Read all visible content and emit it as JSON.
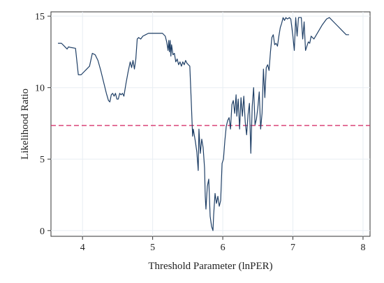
{
  "chart_data": {
    "type": "line",
    "title": "",
    "xlabel": "Threshold Parameter (lnPER)",
    "ylabel": "Likelihood Ratio",
    "xlim": [
      3.55,
      8.1
    ],
    "ylim": [
      -0.4,
      15.3
    ],
    "xticks": [
      4,
      5,
      6,
      7,
      8
    ],
    "yticks": [
      0,
      5,
      10,
      15
    ],
    "xtick_labels": [
      "4",
      "5",
      "6",
      "7",
      "8"
    ],
    "ytick_labels": [
      "0",
      "5",
      "10",
      "15"
    ],
    "grid": true,
    "legend": "none",
    "colors": {
      "line": "#1f3f66",
      "reference": "#d6336c",
      "grid": "#e8eef3"
    },
    "reference_line": {
      "y": 7.35,
      "style": "dashed"
    },
    "series": [
      {
        "points": [
          [
            3.65,
            13.1
          ],
          [
            3.7,
            13.1
          ],
          [
            3.74,
            12.9
          ],
          [
            3.78,
            12.7
          ],
          [
            3.8,
            12.85
          ],
          [
            3.84,
            12.8
          ],
          [
            3.9,
            12.75
          ],
          [
            3.94,
            10.9
          ],
          [
            3.98,
            10.9
          ],
          [
            4.02,
            11.1
          ],
          [
            4.06,
            11.3
          ],
          [
            4.1,
            11.5
          ],
          [
            4.14,
            12.4
          ],
          [
            4.18,
            12.3
          ],
          [
            4.22,
            11.9
          ],
          [
            4.26,
            11.2
          ],
          [
            4.3,
            10.4
          ],
          [
            4.34,
            9.6
          ],
          [
            4.37,
            9.1
          ],
          [
            4.39,
            9.0
          ],
          [
            4.41,
            9.5
          ],
          [
            4.43,
            9.6
          ],
          [
            4.45,
            9.4
          ],
          [
            4.47,
            9.6
          ],
          [
            4.49,
            9.2
          ],
          [
            4.51,
            9.2
          ],
          [
            4.53,
            9.6
          ],
          [
            4.55,
            9.5
          ],
          [
            4.57,
            9.6
          ],
          [
            4.59,
            9.4
          ],
          [
            4.62,
            10.3
          ],
          [
            4.65,
            11.1
          ],
          [
            4.68,
            11.8
          ],
          [
            4.7,
            11.4
          ],
          [
            4.72,
            11.9
          ],
          [
            4.74,
            11.3
          ],
          [
            4.76,
            12.0
          ],
          [
            4.78,
            13.4
          ],
          [
            4.8,
            13.5
          ],
          [
            4.83,
            13.4
          ],
          [
            4.86,
            13.6
          ],
          [
            4.9,
            13.7
          ],
          [
            4.94,
            13.8
          ],
          [
            4.98,
            13.8
          ],
          [
            5.02,
            13.8
          ],
          [
            5.06,
            13.8
          ],
          [
            5.1,
            13.8
          ],
          [
            5.14,
            13.8
          ],
          [
            5.18,
            13.6
          ],
          [
            5.2,
            13.2
          ],
          [
            5.22,
            12.6
          ],
          [
            5.23,
            13.3
          ],
          [
            5.24,
            12.5
          ],
          [
            5.25,
            13.3
          ],
          [
            5.26,
            12.2
          ],
          [
            5.27,
            13.0
          ],
          [
            5.29,
            12.3
          ],
          [
            5.31,
            12.4
          ],
          [
            5.33,
            11.8
          ],
          [
            5.35,
            12.0
          ],
          [
            5.37,
            11.6
          ],
          [
            5.39,
            11.8
          ],
          [
            5.41,
            11.5
          ],
          [
            5.43,
            11.8
          ],
          [
            5.45,
            11.6
          ],
          [
            5.47,
            11.9
          ],
          [
            5.49,
            11.7
          ],
          [
            5.51,
            11.6
          ],
          [
            5.53,
            11.5
          ],
          [
            5.55,
            9.1
          ],
          [
            5.57,
            6.6
          ],
          [
            5.58,
            7.1
          ],
          [
            5.59,
            6.8
          ],
          [
            5.61,
            6.2
          ],
          [
            5.63,
            5.5
          ],
          [
            5.65,
            4.2
          ],
          [
            5.66,
            7.1
          ],
          [
            5.68,
            5.4
          ],
          [
            5.7,
            6.4
          ],
          [
            5.72,
            5.8
          ],
          [
            5.74,
            4.4
          ],
          [
            5.75,
            2.4
          ],
          [
            5.76,
            1.5
          ],
          [
            5.78,
            3.1
          ],
          [
            5.8,
            3.6
          ],
          [
            5.82,
            1.0
          ],
          [
            5.84,
            0.3
          ],
          [
            5.86,
            0.0
          ],
          [
            5.87,
            1.1
          ],
          [
            5.89,
            2.6
          ],
          [
            5.91,
            1.9
          ],
          [
            5.93,
            2.4
          ],
          [
            5.95,
            1.7
          ],
          [
            5.97,
            2.1
          ],
          [
            5.99,
            4.7
          ],
          [
            6.01,
            5.0
          ],
          [
            6.03,
            6.3
          ],
          [
            6.05,
            7.3
          ],
          [
            6.07,
            7.7
          ],
          [
            6.09,
            7.9
          ],
          [
            6.11,
            7.1
          ],
          [
            6.13,
            8.8
          ],
          [
            6.15,
            9.1
          ],
          [
            6.17,
            8.2
          ],
          [
            6.19,
            9.5
          ],
          [
            6.2,
            8.0
          ],
          [
            6.22,
            9.2
          ],
          [
            6.24,
            7.1
          ],
          [
            6.26,
            9.3
          ],
          [
            6.28,
            8.0
          ],
          [
            6.3,
            9.4
          ],
          [
            6.32,
            7.6
          ],
          [
            6.34,
            6.7
          ],
          [
            6.36,
            8.1
          ],
          [
            6.38,
            8.9
          ],
          [
            6.4,
            5.4
          ],
          [
            6.42,
            8.7
          ],
          [
            6.44,
            10.0
          ],
          [
            6.46,
            7.4
          ],
          [
            6.48,
            7.8
          ],
          [
            6.5,
            8.6
          ],
          [
            6.52,
            9.7
          ],
          [
            6.54,
            7.1
          ],
          [
            6.56,
            8.2
          ],
          [
            6.58,
            11.3
          ],
          [
            6.6,
            9.3
          ],
          [
            6.62,
            11.4
          ],
          [
            6.64,
            11.6
          ],
          [
            6.66,
            11.2
          ],
          [
            6.68,
            12.5
          ],
          [
            6.7,
            13.5
          ],
          [
            6.72,
            13.7
          ],
          [
            6.74,
            13.0
          ],
          [
            6.76,
            13.1
          ],
          [
            6.78,
            12.9
          ],
          [
            6.8,
            13.6
          ],
          [
            6.82,
            14.2
          ],
          [
            6.84,
            14.5
          ],
          [
            6.86,
            14.9
          ],
          [
            6.88,
            14.7
          ],
          [
            6.9,
            14.9
          ],
          [
            6.92,
            14.8
          ],
          [
            6.95,
            14.9
          ],
          [
            6.97,
            14.8
          ],
          [
            7.0,
            13.6
          ],
          [
            7.02,
            12.6
          ],
          [
            7.04,
            14.9
          ],
          [
            7.06,
            13.6
          ],
          [
            7.08,
            14.9
          ],
          [
            7.1,
            14.9
          ],
          [
            7.12,
            14.9
          ],
          [
            7.14,
            13.4
          ],
          [
            7.16,
            14.6
          ],
          [
            7.18,
            12.6
          ],
          [
            7.2,
            12.9
          ],
          [
            7.22,
            13.2
          ],
          [
            7.24,
            13.1
          ],
          [
            7.26,
            13.6
          ],
          [
            7.3,
            13.4
          ],
          [
            7.36,
            13.9
          ],
          [
            7.42,
            14.4
          ],
          [
            7.48,
            14.8
          ],
          [
            7.52,
            14.9
          ],
          [
            7.58,
            14.6
          ],
          [
            7.64,
            14.3
          ],
          [
            7.7,
            14.0
          ],
          [
            7.76,
            13.7
          ],
          [
            7.8,
            13.7
          ]
        ]
      }
    ]
  }
}
